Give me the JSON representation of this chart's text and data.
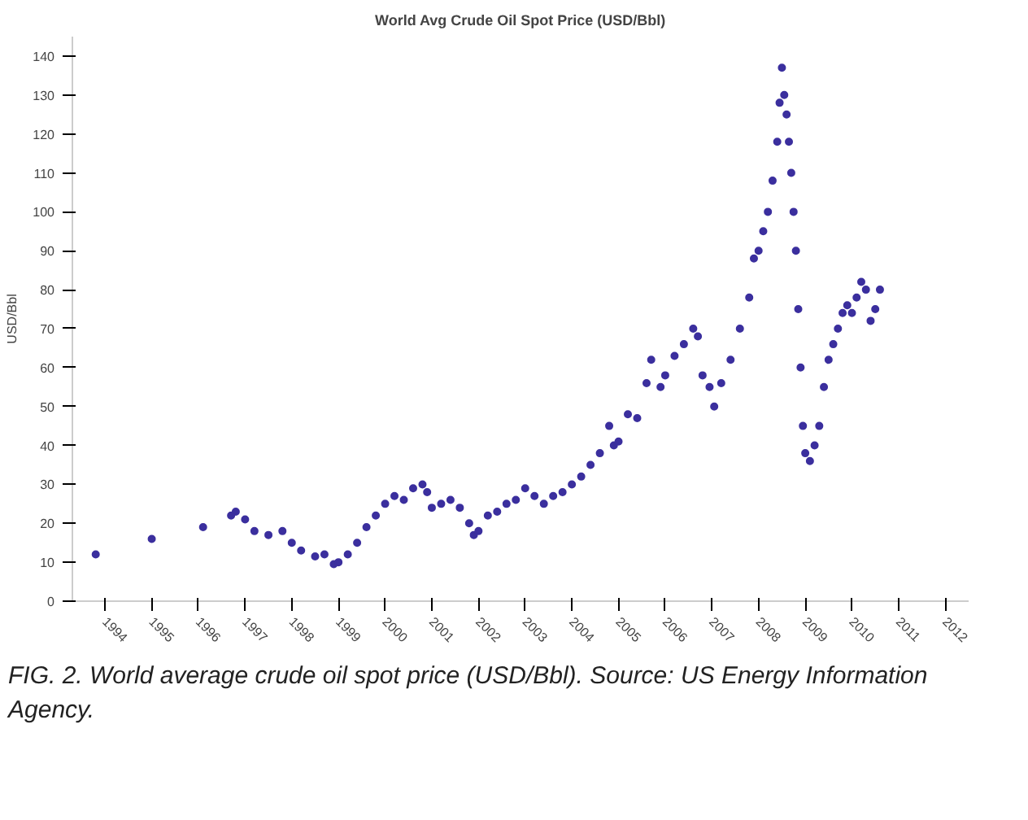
{
  "chart_data": {
    "type": "scatter",
    "title": "World Avg Crude Oil Spot Price (USD/Bbl)",
    "ylabel": "USD/Bbl",
    "x": [
      1993.8,
      1995.0,
      1996.1,
      1996.7,
      1996.8,
      1997.0,
      1997.2,
      1997.5,
      1997.8,
      1998.0,
      1998.2,
      1998.5,
      1998.7,
      1998.9,
      1999.0,
      1999.2,
      1999.4,
      1999.6,
      1999.8,
      2000.0,
      2000.2,
      2000.4,
      2000.6,
      2000.8,
      2000.9,
      2001.0,
      2001.2,
      2001.4,
      2001.6,
      2001.8,
      2001.9,
      2002.0,
      2002.2,
      2002.4,
      2002.6,
      2002.8,
      2003.0,
      2003.2,
      2003.4,
      2003.6,
      2003.8,
      2004.0,
      2004.2,
      2004.4,
      2004.6,
      2004.8,
      2004.9,
      2005.0,
      2005.2,
      2005.4,
      2005.6,
      2005.7,
      2005.9,
      2006.0,
      2006.2,
      2006.4,
      2006.6,
      2006.7,
      2006.8,
      2006.95,
      2007.05,
      2007.2,
      2007.4,
      2007.6,
      2007.8,
      2007.9,
      2008.0,
      2008.1,
      2008.2,
      2008.3,
      2008.4,
      2008.45,
      2008.5,
      2008.55,
      2008.6,
      2008.65,
      2008.7,
      2008.75,
      2008.8,
      2008.85,
      2008.9,
      2008.95,
      2009.0,
      2009.1,
      2009.2,
      2009.3,
      2009.4,
      2009.5,
      2009.6,
      2009.7,
      2009.8,
      2009.9,
      2010.0,
      2010.1,
      2010.2,
      2010.3,
      2010.4,
      2010.5,
      2010.6
    ],
    "values": [
      12,
      16,
      19,
      22,
      23,
      21,
      18,
      17,
      18,
      15,
      13,
      11.5,
      12,
      9.5,
      10,
      12,
      15,
      19,
      22,
      25,
      27,
      26,
      29,
      30,
      28,
      24,
      25,
      26,
      24,
      20,
      17,
      18,
      22,
      23,
      25,
      26,
      29,
      27,
      25,
      27,
      28,
      30,
      32,
      35,
      38,
      45,
      40,
      41,
      48,
      47,
      56,
      62,
      55,
      58,
      63,
      66,
      70,
      68,
      58,
      55,
      50,
      56,
      62,
      70,
      78,
      88,
      90,
      95,
      100,
      108,
      118,
      128,
      137,
      130,
      125,
      118,
      110,
      100,
      90,
      75,
      60,
      45,
      38,
      36,
      40,
      45,
      55,
      62,
      66,
      70,
      74,
      76,
      74,
      78,
      82,
      80,
      72,
      75,
      80
    ],
    "color": "#3b2f9e",
    "marker": "circle",
    "xlim": [
      1993.3,
      2012.5
    ],
    "xticks": [
      1994,
      1995,
      1996,
      1997,
      1998,
      1999,
      2000,
      2001,
      2002,
      2003,
      2004,
      2005,
      2006,
      2007,
      2008,
      2009,
      2010,
      2011,
      2012
    ],
    "ylim": [
      0,
      145
    ],
    "yticks": [
      0,
      10,
      20,
      30,
      40,
      50,
      60,
      70,
      80,
      90,
      100,
      110,
      120,
      130,
      140
    ],
    "grid": false,
    "annotations": [
      "FIG. 2. World average crude oil spot price (USD/Bbl). Source: US Energy Information Agency."
    ]
  }
}
